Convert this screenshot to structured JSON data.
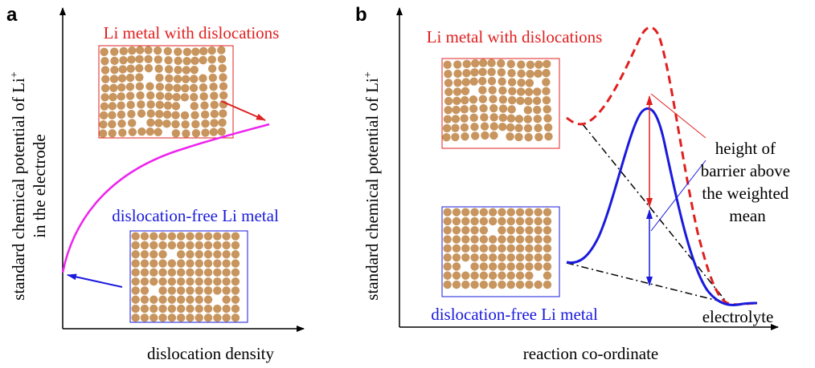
{
  "panel_a": {
    "label": "a",
    "top_caption": "Li metal with dislocations",
    "bottom_caption": "dislocation-free Li metal",
    "y_label_line1": {
      "text": "standard chemical potential of Li",
      "superscript": "+"
    },
    "y_label_line2": "in the electrode",
    "x_label": "dislocation density"
  },
  "panel_b": {
    "label": "b",
    "top_caption": "Li metal with dislocations",
    "bottom_caption": "dislocation-free Li metal",
    "y_label": {
      "text": "standard chemical potential of Li",
      "superscript": "+"
    },
    "x_label": "reaction co-ordinate",
    "annotation": [
      "height of",
      "barrier above",
      "the weighted",
      "mean"
    ],
    "electrolyte": "electrolyte"
  }
}
